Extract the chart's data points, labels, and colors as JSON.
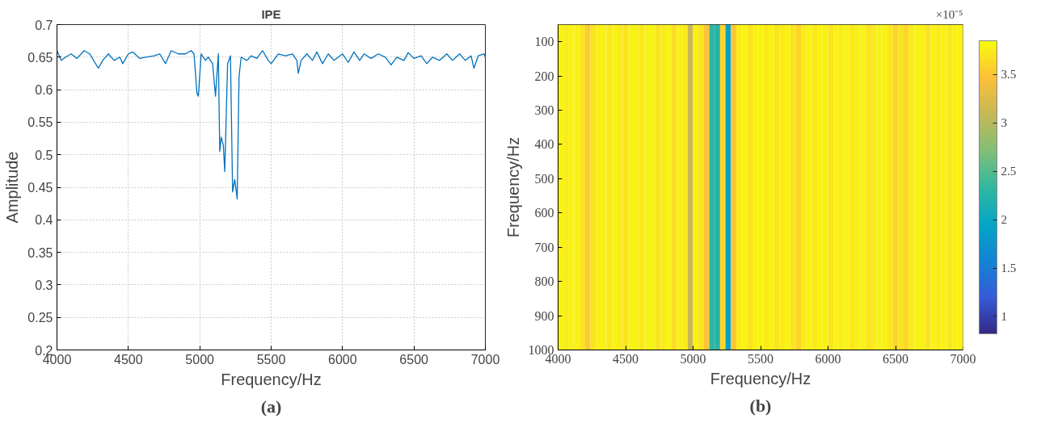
{
  "chart_data": [
    {
      "type": "line",
      "title": "IPE",
      "xlabel": "Frequency/Hz",
      "ylabel": "Amplitude",
      "annotations": [
        "(a)"
      ],
      "xlim": [
        4000,
        7000
      ],
      "xticks": [
        4000,
        4500,
        5000,
        5500,
        6000,
        6500,
        7000
      ],
      "ylim": [
        0.2,
        0.7
      ],
      "yticks": [
        {
          "value": 0.2,
          "label": "0.2"
        },
        0.25,
        {
          "value": 0.3,
          "label": "0.3"
        },
        0.35,
        {
          "value": 0.4,
          "label": "0.4"
        },
        0.45,
        {
          "value": 0.5,
          "label": "0.5"
        },
        0.55,
        {
          "value": 0.6,
          "label": "0.6"
        },
        0.65,
        {
          "value": 0.7,
          "label": "0.7"
        }
      ],
      "grid": true,
      "line_style": "solid",
      "x": [
        4000,
        4030,
        4060,
        4100,
        4140,
        4190,
        4230,
        4270,
        4290,
        4320,
        4360,
        4400,
        4440,
        4460,
        4500,
        4530,
        4580,
        4620,
        4680,
        4720,
        4760,
        4800,
        4850,
        4900,
        4940,
        4960,
        4980,
        4990,
        5010,
        5040,
        5060,
        5090,
        5110,
        5130,
        5140,
        5150,
        5165,
        5175,
        5195,
        5215,
        5230,
        5245,
        5262,
        5275,
        5290,
        5330,
        5360,
        5400,
        5440,
        5480,
        5500,
        5550,
        5600,
        5650,
        5680,
        5690,
        5710,
        5750,
        5790,
        5820,
        5860,
        5900,
        5940,
        6000,
        6040,
        6080,
        6120,
        6150,
        6200,
        6250,
        6300,
        6340,
        6380,
        6430,
        6460,
        6500,
        6550,
        6590,
        6630,
        6680,
        6730,
        6770,
        6820,
        6860,
        6900,
        6920,
        6950,
        6990,
        7000
      ],
      "series": [
        {
          "color": "#0072bd",
          "values": [
            0.66,
            0.645,
            0.65,
            0.655,
            0.648,
            0.66,
            0.655,
            0.64,
            0.633,
            0.645,
            0.655,
            0.645,
            0.65,
            0.64,
            0.655,
            0.658,
            0.648,
            0.65,
            0.652,
            0.655,
            0.64,
            0.66,
            0.655,
            0.655,
            0.66,
            0.655,
            0.595,
            0.59,
            0.655,
            0.645,
            0.65,
            0.64,
            0.59,
            0.655,
            0.505,
            0.527,
            0.515,
            0.474,
            0.64,
            0.652,
            0.443,
            0.462,
            0.432,
            0.62,
            0.65,
            0.645,
            0.652,
            0.648,
            0.66,
            0.645,
            0.64,
            0.655,
            0.652,
            0.655,
            0.645,
            0.625,
            0.645,
            0.655,
            0.645,
            0.658,
            0.64,
            0.655,
            0.645,
            0.655,
            0.642,
            0.658,
            0.645,
            0.655,
            0.648,
            0.655,
            0.65,
            0.638,
            0.65,
            0.645,
            0.657,
            0.648,
            0.652,
            0.64,
            0.65,
            0.645,
            0.655,
            0.645,
            0.655,
            0.645,
            0.652,
            0.633,
            0.652,
            0.655,
            0.65
          ]
        }
      ]
    },
    {
      "type": "heatmap",
      "xlabel": "Frequency/Hz",
      "ylabel": "Frequency/Hz",
      "clabel": "×10⁻⁵",
      "annotations": [
        "(b)"
      ],
      "xlim": [
        4000,
        7000
      ],
      "xticks": [
        4000,
        4500,
        5000,
        5500,
        6000,
        6500,
        7000
      ],
      "ylim": [
        1000,
        50
      ],
      "yticks": [
        100,
        200,
        300,
        400,
        500,
        600,
        700,
        800,
        900,
        1000
      ],
      "clim": [
        0.82,
        3.85
      ],
      "cticks": [
        {
          "value": 1,
          "label": "1"
        },
        1.5,
        {
          "value": 2,
          "label": "2"
        },
        2.5,
        {
          "value": 3,
          "label": "3"
        },
        3.5
      ],
      "x": [
        4020,
        4060,
        4100,
        4140,
        4180,
        4220,
        4260,
        4300,
        4340,
        4380,
        4420,
        4460,
        4500,
        4540,
        4580,
        4620,
        4660,
        4700,
        4740,
        4780,
        4820,
        4860,
        4900,
        4940,
        4980,
        5020,
        5060,
        5100,
        5140,
        5180,
        5220,
        5260,
        5300,
        5340,
        5380,
        5420,
        5460,
        5500,
        5540,
        5580,
        5620,
        5660,
        5700,
        5740,
        5780,
        5820,
        5860,
        5900,
        5940,
        5980,
        6020,
        6060,
        6100,
        6140,
        6180,
        6220,
        6260,
        6300,
        6340,
        6380,
        6420,
        6460,
        6500,
        6540,
        6580,
        6620,
        6660,
        6700,
        6740,
        6780,
        6820,
        6860,
        6900,
        6940,
        6980
      ],
      "cells": [
        [
          3.8,
          3.75,
          3.8,
          3.78,
          3.7,
          3.55,
          3.7,
          3.78,
          3.8,
          3.72,
          3.8,
          3.75,
          3.7,
          3.8,
          3.78,
          3.72,
          3.8,
          3.8,
          3.7,
          3.75,
          3.8,
          3.65,
          3.78,
          3.75,
          3.1,
          3.78,
          3.7,
          3.5,
          2.3,
          2.25,
          3.6,
          1.9,
          3.5,
          3.75,
          3.8,
          3.7,
          3.78,
          3.8,
          3.72,
          3.8,
          3.7,
          3.75,
          3.8,
          3.7,
          3.6,
          3.75,
          3.8,
          3.72,
          3.8,
          3.78,
          3.7,
          3.8,
          3.75,
          3.8,
          3.72,
          3.78,
          3.8,
          3.7,
          3.75,
          3.8,
          3.78,
          3.72,
          3.6,
          3.7,
          3.62,
          3.75,
          3.8,
          3.78,
          3.7,
          3.8,
          3.75,
          3.8,
          3.72,
          3.78,
          3.8
        ]
      ]
    }
  ]
}
